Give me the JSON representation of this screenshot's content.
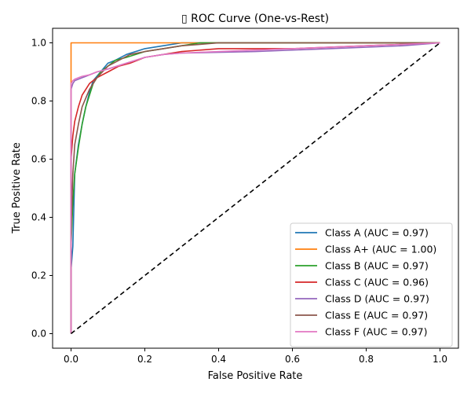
{
  "chart_data": {
    "type": "line",
    "title": "▯ ROC Curve (One-vs-Rest)",
    "xlabel": "False Positive Rate",
    "ylabel": "True Positive Rate",
    "xlim": [
      -0.05,
      1.05
    ],
    "ylim": [
      -0.05,
      1.05
    ],
    "xticks": [
      0.0,
      0.2,
      0.4,
      0.6,
      0.8,
      1.0
    ],
    "yticks": [
      0.0,
      0.2,
      0.4,
      0.6,
      0.8,
      1.0
    ],
    "xtick_labels": [
      "0.0",
      "0.2",
      "0.4",
      "0.6",
      "0.8",
      "1.0"
    ],
    "ytick_labels": [
      "0.0",
      "0.2",
      "0.4",
      "0.6",
      "0.8",
      "1.0"
    ],
    "grid": false,
    "legend_position": "bottom-right",
    "diagonal": {
      "x": [
        0,
        1
      ],
      "y": [
        0,
        1
      ],
      "color": "#000000",
      "style": "dashed"
    },
    "series": [
      {
        "name": "Class A (AUC = 0.97)",
        "color": "#1f77b4",
        "x": [
          0,
          0,
          0.005,
          0.01,
          0.02,
          0.03,
          0.04,
          0.05,
          0.06,
          0.08,
          0.1,
          0.12,
          0.15,
          0.2,
          0.25,
          0.3,
          0.4,
          1.0
        ],
        "y": [
          0,
          0.22,
          0.3,
          0.55,
          0.65,
          0.72,
          0.78,
          0.83,
          0.87,
          0.9,
          0.93,
          0.94,
          0.96,
          0.98,
          0.99,
          1.0,
          1.0,
          1.0
        ]
      },
      {
        "name": "Class A+ (AUC = 1.00)",
        "color": "#ff7f0e",
        "x": [
          0,
          0,
          0.3,
          1.0
        ],
        "y": [
          0,
          1.0,
          1.0,
          1.0
        ]
      },
      {
        "name": "Class B (AUC = 0.97)",
        "color": "#2ca02c",
        "x": [
          0,
          0,
          0.005,
          0.01,
          0.02,
          0.03,
          0.04,
          0.05,
          0.06,
          0.07,
          0.08,
          0.1,
          0.12,
          0.15,
          0.2,
          0.25,
          0.3,
          0.35,
          1.0
        ],
        "y": [
          0,
          0.3,
          0.45,
          0.55,
          0.64,
          0.72,
          0.78,
          0.82,
          0.86,
          0.88,
          0.9,
          0.92,
          0.94,
          0.95,
          0.97,
          0.98,
          0.99,
          1.0,
          1.0
        ]
      },
      {
        "name": "Class C (AUC = 0.96)",
        "color": "#d62728",
        "x": [
          0,
          0,
          0.005,
          0.01,
          0.02,
          0.03,
          0.05,
          0.07,
          0.1,
          0.13,
          0.16,
          0.2,
          0.25,
          0.3,
          0.4,
          0.6,
          0.8,
          1.0
        ],
        "y": [
          0,
          0.6,
          0.68,
          0.73,
          0.78,
          0.82,
          0.86,
          0.88,
          0.9,
          0.92,
          0.93,
          0.95,
          0.96,
          0.97,
          0.98,
          0.98,
          0.99,
          1.0
        ]
      },
      {
        "name": "Class D (AUC = 0.97)",
        "color": "#9467bd",
        "x": [
          0,
          0,
          0.005,
          0.01,
          0.02,
          0.03,
          0.04,
          0.05,
          0.07,
          0.1,
          0.15,
          0.2,
          0.25,
          0.3,
          0.5,
          0.7,
          0.9,
          1.0
        ],
        "y": [
          0,
          0.84,
          0.86,
          0.87,
          0.875,
          0.88,
          0.885,
          0.89,
          0.9,
          0.91,
          0.93,
          0.95,
          0.96,
          0.965,
          0.97,
          0.98,
          0.99,
          1.0
        ]
      },
      {
        "name": "Class E (AUC = 0.97)",
        "color": "#8c564b",
        "x": [
          0,
          0,
          0.005,
          0.01,
          0.02,
          0.03,
          0.05,
          0.07,
          0.1,
          0.13,
          0.16,
          0.2,
          0.25,
          0.3,
          0.35,
          0.4,
          1.0
        ],
        "y": [
          0,
          0.35,
          0.55,
          0.65,
          0.72,
          0.78,
          0.84,
          0.88,
          0.92,
          0.94,
          0.96,
          0.97,
          0.98,
          0.99,
          0.995,
          1.0,
          1.0
        ]
      },
      {
        "name": "Class F (AUC = 0.97)",
        "color": "#e377c2",
        "x": [
          0,
          0,
          0.005,
          0.01,
          0.02,
          0.03,
          0.05,
          0.07,
          0.1,
          0.15,
          0.2,
          0.25,
          0.3,
          0.4,
          0.6,
          0.8,
          1.0
        ],
        "y": [
          0,
          0.86,
          0.87,
          0.875,
          0.88,
          0.885,
          0.89,
          0.9,
          0.91,
          0.93,
          0.95,
          0.96,
          0.965,
          0.97,
          0.98,
          0.99,
          1.0
        ]
      }
    ]
  }
}
